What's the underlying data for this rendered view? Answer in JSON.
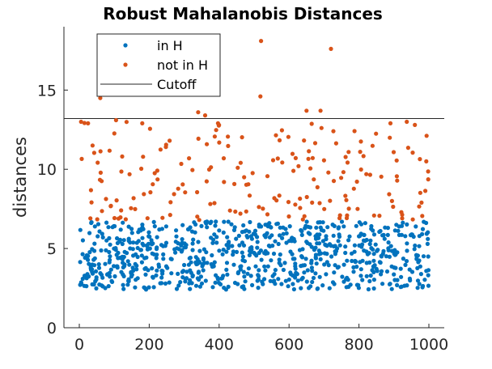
{
  "chart_data": {
    "type": "scatter",
    "title": "Robust Mahalanobis Distances",
    "xlabel": "",
    "ylabel": "distances",
    "xlim": [
      -40,
      1040
    ],
    "ylim": [
      0,
      19
    ],
    "xticks": [
      0,
      200,
      400,
      600,
      800,
      1000
    ],
    "yticks": [
      0,
      5,
      10,
      15
    ],
    "xtick_labels": [
      "0",
      "200",
      "400",
      "600",
      "800",
      "1000"
    ],
    "ytick_labels": [
      "0",
      "5",
      "10",
      "15"
    ],
    "grid": false,
    "legend_position": "top-left",
    "cutoff": 13.2,
    "series": [
      {
        "name": "in H",
        "color": "#0072BD",
        "n_points": 800,
        "y_range": [
          2.4,
          6.7
        ],
        "points": "dense band of points spread across x 0-1000 with distances between about 2.4 and 6.7"
      },
      {
        "name": "not in H",
        "color": "#D95319",
        "n_points": 200,
        "y_range": [
          6.7,
          18.1
        ],
        "notable_points": [
          {
            "x": 520,
            "y": 18.1
          },
          {
            "x": 720,
            "y": 17.6
          },
          {
            "x": 518,
            "y": 14.6
          },
          {
            "x": 60,
            "y": 14.5
          },
          {
            "x": 340,
            "y": 13.6
          },
          {
            "x": 360,
            "y": 13.4
          },
          {
            "x": 650,
            "y": 13.7
          },
          {
            "x": 690,
            "y": 13.7
          },
          {
            "x": 5,
            "y": 13.0
          },
          {
            "x": 25,
            "y": 12.9
          },
          {
            "x": 105,
            "y": 13.1
          },
          {
            "x": 180,
            "y": 12.9
          },
          {
            "x": 890,
            "y": 12.9
          },
          {
            "x": 960,
            "y": 12.8
          }
        ]
      },
      {
        "name": "Cutoff",
        "color": "#262626",
        "type": "hline",
        "y": 13.2
      }
    ]
  }
}
